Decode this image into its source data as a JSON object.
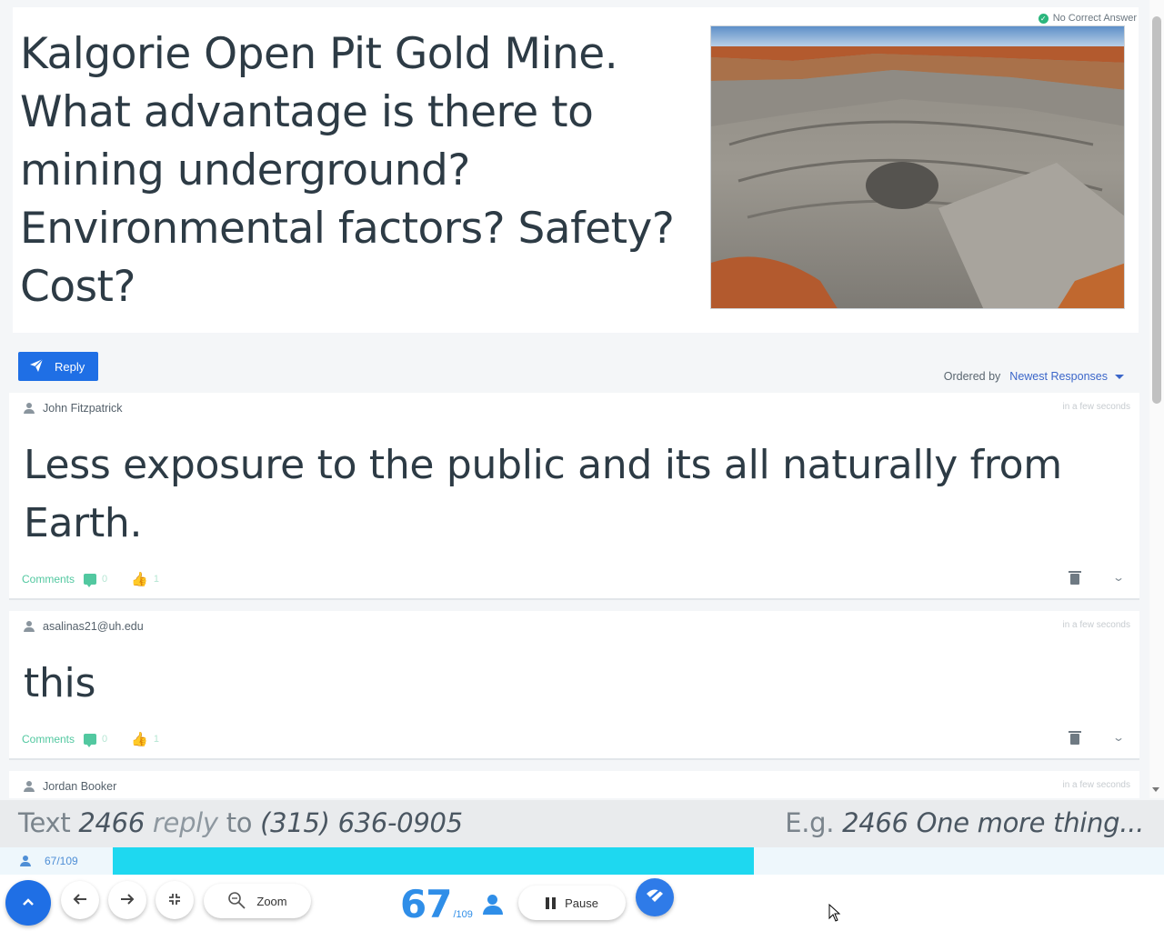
{
  "question": {
    "text": "Kalgorie Open Pit Gold Mine.  What advantage is there to mining underground?  Environmental factors? Safety? Cost?",
    "no_correct_answer": "No Correct Answer",
    "image_alt": "Kalgoorlie Super Pit open pit gold mine"
  },
  "reply": {
    "label": "Reply"
  },
  "ordering": {
    "label": "Ordered by",
    "selected": "Newest Responses"
  },
  "responses": [
    {
      "author": "John Fitzpatrick",
      "time": "in a few seconds",
      "text": "Less exposure to the public and its all naturally from Earth.",
      "comments_label": "Comments",
      "comments_count": "0",
      "likes": "1"
    },
    {
      "author": "asalinas21@uh.edu",
      "time": "in a few seconds",
      "text": "this",
      "comments_label": "Comments",
      "comments_count": "0",
      "likes": "1"
    },
    {
      "author": "Jordan Booker",
      "time": "in a few seconds"
    }
  ],
  "sms": {
    "text_word": "Text",
    "code": "2466",
    "reply_word": "reply",
    "to_word": "to",
    "phone": "(315) 636-0905",
    "eg": "E.g.",
    "example": "2466 One more thing..."
  },
  "progress": {
    "label": "67/109",
    "fraction": 0.61
  },
  "toolbar": {
    "zoom_label": "Zoom",
    "count": "67",
    "total": "/109",
    "pause_label": "Pause"
  },
  "colors": {
    "accent": "#1f6fe5",
    "progress": "#1ed8f0",
    "counter": "#2f8ee8",
    "green": "#52c8a0"
  }
}
